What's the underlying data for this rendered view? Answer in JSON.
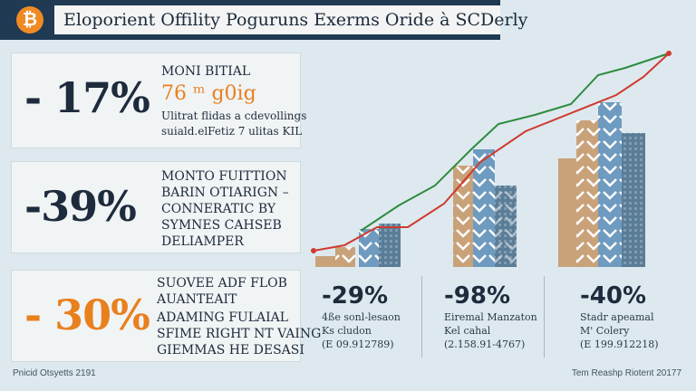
{
  "header": {
    "logo_glyph": "₿",
    "title": "Eloporient Offility Poguruns Exerms Oride à SCDerly"
  },
  "cards": [
    {
      "pct": "- 17%",
      "lines": [
        "MONI BITIAL",
        "76 ᵐ g0ig",
        "Ulitrat flidas a cdevollings",
        "suiald.elFetiz 7 ulitas KIL"
      ]
    },
    {
      "pct": "-39%",
      "lines": [
        "MONTO FUITTION",
        "BARIN OTIARIGN –",
        "CONNERATIC BY",
        "SYMNES CAHSEB",
        "DELIAMPER"
      ]
    },
    {
      "pct": "- 30%",
      "lines": [
        "SUOVEE ADF FLOB",
        "AUANTEAIT",
        "ADAMING FULAIAL",
        "SFIME RIGHT NT VAING",
        "GIEMMAS HE DESASI"
      ]
    }
  ],
  "stats": [
    {
      "value": "-29%",
      "l1": "4ße sonl-lesaon",
      "l2": "Ks cludon",
      "l3": "(E 09.912789)"
    },
    {
      "value": "-98%",
      "l1": "Eiremal Manzaton",
      "l2": "Kel cahal",
      "l3": "(2.158.91-4767)"
    },
    {
      "value": "-40%",
      "l1": "Stadr apeamal",
      "l2": "M' Colery",
      "l3": "(E 199.912218)"
    }
  ],
  "footer": {
    "left": "Pnicid Otsyetts 2191",
    "right": "Tem Reashp Riotent 20177"
  },
  "colors": {
    "navy": "#1f3a52",
    "orange": "#e8801e",
    "bar_tan": "#c9a27a",
    "bar_blue": "#6e9bbf",
    "bar_slate": "#4c6e8c",
    "line_green": "#2e8b3e",
    "line_red": "#d03a2f"
  }
}
